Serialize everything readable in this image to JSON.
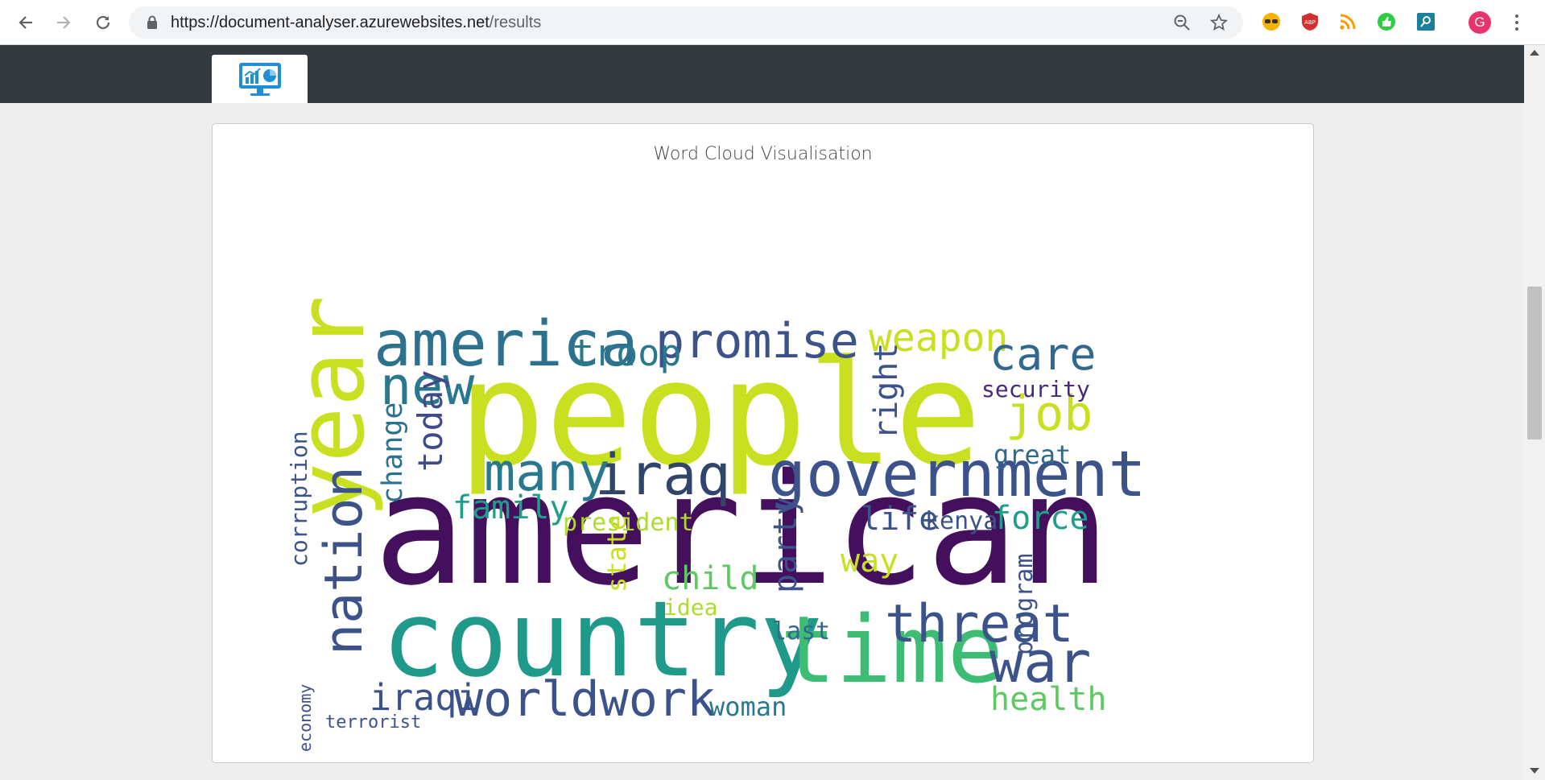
{
  "browser": {
    "url_base": "https://document-analyser.azurewebsites.net",
    "url_path": "/results",
    "icons": [
      "back-icon",
      "forward-icon",
      "reload-icon",
      "lock-icon",
      "zoom-icon",
      "star-icon"
    ],
    "extensions": [
      "sunglasses-extension-icon",
      "adblock-extension-icon",
      "rss-extension-icon",
      "thumbs-up-extension-icon",
      "search-extension-icon"
    ],
    "profile_initial": "G"
  },
  "card": {
    "title": "Word Cloud Visualisation"
  },
  "colors": {
    "purple": "#46327e",
    "indigo": "#3b528b",
    "blue": "#365c8d",
    "teal": "#21918c",
    "green": "#35b779",
    "lime": "#bddf26"
  },
  "wordcloud": {
    "words": [
      {
        "t": "american",
        "c": "#440f5c"
      },
      {
        "t": "people",
        "c": "#c8e020"
      },
      {
        "t": "country",
        "c": "#1f9a8a"
      },
      {
        "t": "time",
        "c": "#3dbc74"
      },
      {
        "t": "year",
        "c": "#c8e020"
      },
      {
        "t": "government",
        "c": "#3b528b"
      },
      {
        "t": "america",
        "c": "#2c728e"
      },
      {
        "t": "promise",
        "c": "#3b528b"
      },
      {
        "t": "iraq",
        "c": "#31446b"
      },
      {
        "t": "many",
        "c": "#2a788e"
      },
      {
        "t": "new",
        "c": "#2a788e"
      },
      {
        "t": "nation",
        "c": "#3b528b"
      },
      {
        "t": "threat",
        "c": "#3b528b"
      },
      {
        "t": "war",
        "c": "#3b528b"
      },
      {
        "t": "worldwork",
        "c": "#3b528b"
      },
      {
        "t": "job",
        "c": "#c8e020"
      },
      {
        "t": "weapon",
        "c": "#c8e020"
      },
      {
        "t": "care",
        "c": "#31688e"
      },
      {
        "t": "troop",
        "c": "#2a788e"
      },
      {
        "t": "iraqi",
        "c": "#3b528b"
      },
      {
        "t": "today",
        "c": "#3e4a89"
      },
      {
        "t": "family",
        "c": "#1f9e89"
      },
      {
        "t": "child",
        "c": "#5ec962"
      },
      {
        "t": "force",
        "c": "#1f9e89"
      },
      {
        "t": "life",
        "c": "#3b528b"
      },
      {
        "t": "health",
        "c": "#5ec962"
      },
      {
        "t": "way",
        "c": "#c8e020"
      },
      {
        "t": "party",
        "c": "#3b528b"
      },
      {
        "t": "right",
        "c": "#3b528b"
      },
      {
        "t": "change",
        "c": "#2c728e"
      },
      {
        "t": "corruption",
        "c": "#3b528b"
      },
      {
        "t": "security",
        "c": "#482878"
      },
      {
        "t": "president",
        "c": "#addc30"
      },
      {
        "t": "kenya",
        "c": "#3b528b"
      },
      {
        "t": "great",
        "c": "#31688e"
      },
      {
        "t": "woman",
        "c": "#2a788e"
      },
      {
        "t": "state",
        "c": "#c8e020"
      },
      {
        "t": "program",
        "c": "#3b528b"
      },
      {
        "t": "idea",
        "c": "#addc30"
      },
      {
        "t": "last",
        "c": "#31688e"
      },
      {
        "t": "terrorist",
        "c": "#3b528b"
      },
      {
        "t": "economy",
        "c": "#3b528b"
      }
    ]
  }
}
